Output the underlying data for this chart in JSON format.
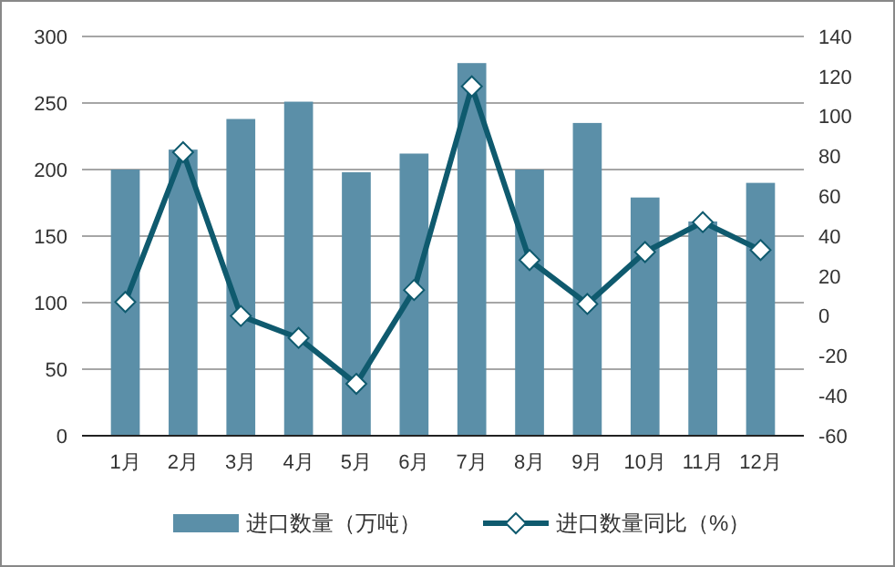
{
  "chart_data": {
    "type": "bar",
    "categories": [
      "1月",
      "2月",
      "3月",
      "4月",
      "5月",
      "6月",
      "7月",
      "8月",
      "9月",
      "10月",
      "11月",
      "12月"
    ],
    "series": [
      {
        "name": "进口数量（万吨）",
        "color": "#5b8fa8",
        "values": [
          200,
          215,
          238,
          251,
          198,
          212,
          280,
          200,
          235,
          179,
          161,
          190
        ]
      },
      {
        "name": "进口数量同比（%）",
        "type": "line",
        "axis": "y2",
        "color": "#0f5a6e",
        "marker": "diamond",
        "values": [
          7,
          82,
          0,
          -11,
          -34,
          13,
          115,
          28,
          6,
          32,
          47,
          33
        ]
      }
    ],
    "ylim": [
      0,
      300
    ],
    "yticks": [
      0,
      50,
      100,
      150,
      200,
      250,
      300
    ],
    "y2lim": [
      -60,
      140
    ],
    "y2ticks": [
      -60,
      -40,
      -20,
      0,
      20,
      40,
      60,
      80,
      100,
      120,
      140
    ],
    "grid": "y",
    "legend": "bottom"
  }
}
